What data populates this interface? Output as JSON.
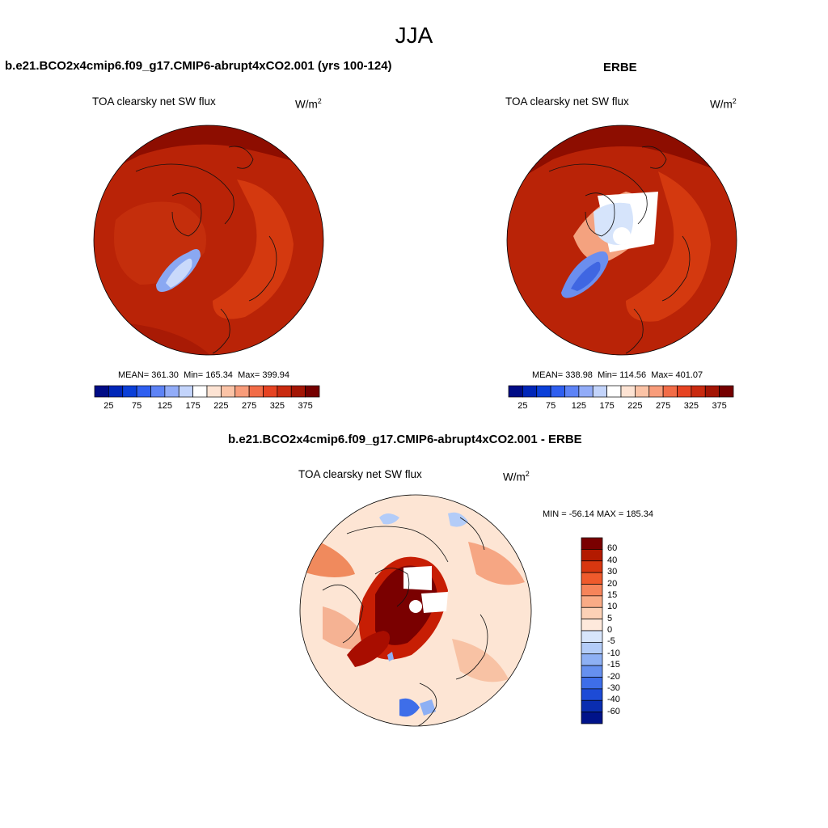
{
  "figure_title": "JJA",
  "panels": [
    {
      "id": "model",
      "case_title": "b.e21.BCO2x4cmip6.f09_g17.CMIP6-abrupt4xCO2.001 (yrs 100-124)",
      "variable": "TOA clearsky net SW flux",
      "units_base": "W/m",
      "units_exp": "2",
      "stats": {
        "mean_label": "MEAN=",
        "mean": "361.30",
        "min_label": "Min=",
        "min": "165.34",
        "max_label": "Max=",
        "max": "399.94"
      }
    },
    {
      "id": "obs",
      "case_title": "ERBE",
      "variable": "TOA clearsky net SW flux",
      "units_base": "W/m",
      "units_exp": "2",
      "stats": {
        "mean_label": "MEAN=",
        "mean": "338.98",
        "min_label": "Min=",
        "min": "114.56",
        "max_label": "Max=",
        "max": "401.07"
      }
    },
    {
      "id": "diff",
      "case_title": "b.e21.BCO2x4cmip6.f09_g17.CMIP6-abrupt4xCO2.001 - ERBE",
      "variable": "TOA clearsky net SW flux",
      "units_base": "W/m",
      "units_exp": "2",
      "stats_text": "MIN = -56.14 MAX = 185.34"
    }
  ],
  "abs_colorbar": {
    "colors": [
      "#000c86",
      "#0026b8",
      "#0a3fd8",
      "#2f5ff0",
      "#5d83f6",
      "#92acf8",
      "#c3d4fb",
      "#ffffff",
      "#fde3d3",
      "#fbc3a6",
      "#f89c7a",
      "#f26c47",
      "#e64322",
      "#c92a0f",
      "#a31504",
      "#750000"
    ],
    "tick_labels": [
      "25",
      "75",
      "125",
      "175",
      "225",
      "275",
      "325",
      "375"
    ]
  },
  "diff_colorbar": {
    "colors": [
      "#7a0000",
      "#b31a00",
      "#d83710",
      "#ef5a2c",
      "#f6845a",
      "#f9ab86",
      "#fcd1b6",
      "#fee9dc",
      "#d7e5fb",
      "#b3ccf8",
      "#8eb0f4",
      "#6690ef",
      "#3e6ee9",
      "#1d4bd6",
      "#0a2db0",
      "#00138a"
    ],
    "tick_labels": [
      "60",
      "40",
      "30",
      "20",
      "15",
      "10",
      "5",
      "0",
      "-5",
      "-10",
      "-15",
      "-20",
      "-30",
      "-40",
      "-60"
    ]
  },
  "chart_data": [
    {
      "type": "heatmap",
      "title": "TOA clearsky net SW flux",
      "projection": "north polar stereographic",
      "units": "W/m2",
      "levels": [
        25,
        50,
        75,
        100,
        125,
        150,
        175,
        200,
        225,
        250,
        275,
        300,
        325,
        350,
        375
      ],
      "mean": 361.3,
      "min": 165.34,
      "max": 399.94
    },
    {
      "type": "heatmap",
      "title": "TOA clearsky net SW flux",
      "projection": "north polar stereographic",
      "units": "W/m2",
      "levels": [
        25,
        50,
        75,
        100,
        125,
        150,
        175,
        200,
        225,
        250,
        275,
        300,
        325,
        350,
        375
      ],
      "mean": 338.98,
      "min": 114.56,
      "max": 401.07
    },
    {
      "type": "heatmap",
      "title": "TOA clearsky net SW flux",
      "projection": "north polar stereographic",
      "units": "W/m2",
      "levels": [
        -60,
        -40,
        -30,
        -20,
        -15,
        -10,
        -5,
        0,
        5,
        10,
        15,
        20,
        30,
        40,
        60
      ],
      "min": -56.14,
      "max": 185.34
    }
  ]
}
